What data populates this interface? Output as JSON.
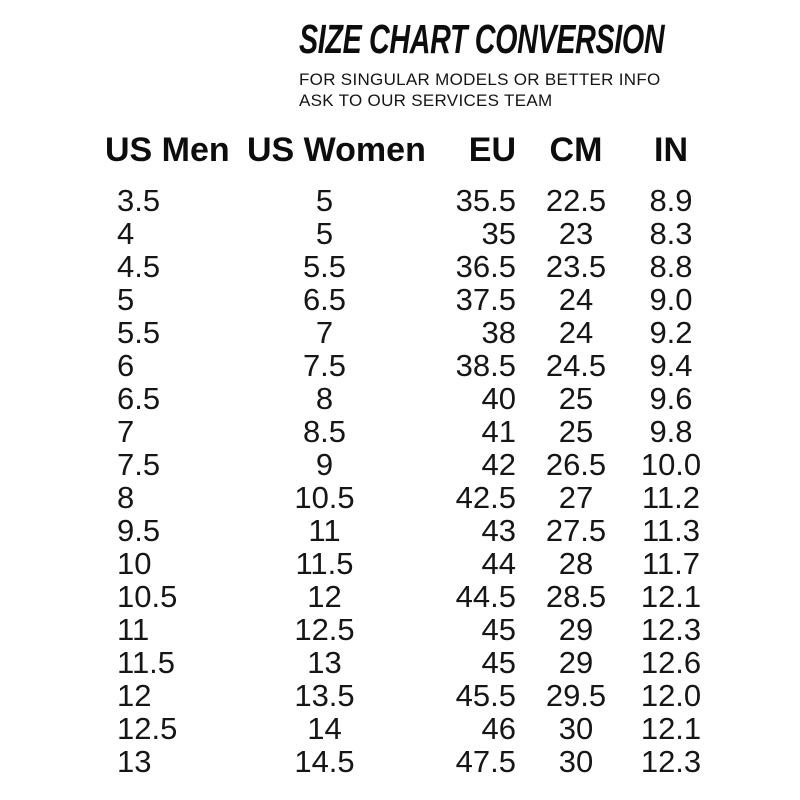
{
  "header": {
    "title": "SIZE CHART CONVERSION",
    "subtitle_line1": "FOR SINGULAR MODELS OR BETTER INFO",
    "subtitle_line2": "ASK TO OUR SERVICES TEAM"
  },
  "chart_data": {
    "type": "table",
    "title": "SIZE CHART CONVERSION",
    "columns": [
      "US Men",
      "US Women",
      "EU",
      "CM",
      "IN"
    ],
    "rows": [
      [
        "3.5",
        "5",
        "35.5",
        "22.5",
        "8.9"
      ],
      [
        "4",
        "5",
        "35",
        "23",
        "8.3"
      ],
      [
        "4.5",
        "5.5",
        "36.5",
        "23.5",
        "8.8"
      ],
      [
        "5",
        "6.5",
        "37.5",
        "24",
        "9.0"
      ],
      [
        "5.5",
        "7",
        "38",
        "24",
        "9.2"
      ],
      [
        "6",
        "7.5",
        "38.5",
        "24.5",
        "9.4"
      ],
      [
        "6.5",
        "8",
        "40",
        "25",
        "9.6"
      ],
      [
        "7",
        "8.5",
        "41",
        "25",
        "9.8"
      ],
      [
        "7.5",
        "9",
        "42",
        "26.5",
        "10.0"
      ],
      [
        "8",
        "10.5",
        "42.5",
        "27",
        "11.2"
      ],
      [
        "9.5",
        "11",
        "43",
        "27.5",
        "11.3"
      ],
      [
        "10",
        "11.5",
        "44",
        "28",
        "11.7"
      ],
      [
        "10.5",
        "12",
        "44.5",
        "28.5",
        "12.1"
      ],
      [
        "11",
        "12.5",
        "45",
        "29",
        "12.3"
      ],
      [
        "11.5",
        "13",
        "45",
        "29",
        "12.6"
      ],
      [
        "12",
        "13.5",
        "45.5",
        "29.5",
        "12.0"
      ],
      [
        "12.5",
        "14",
        "46",
        "30",
        "12.1"
      ],
      [
        "13",
        "14.5",
        "47.5",
        "30",
        "12.3"
      ]
    ]
  },
  "colors": {
    "text": "#101010",
    "background": "#ffffff"
  }
}
